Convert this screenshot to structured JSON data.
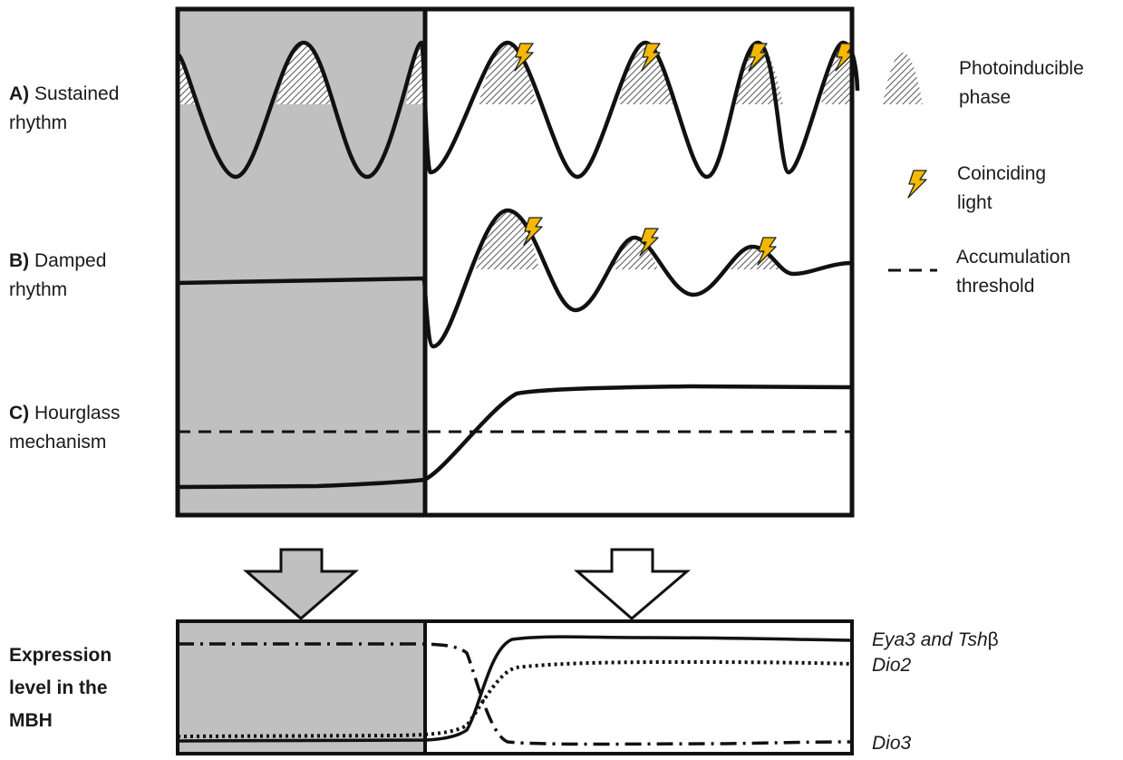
{
  "rows": {
    "a": {
      "letter": "A)",
      "line1": "Sustained",
      "line2": "rhythm"
    },
    "b": {
      "letter": "B)",
      "line1": "Damped",
      "line2": "rhythm"
    },
    "c": {
      "letter": "C)",
      "line1": "Hourglass",
      "line2": "mechanism"
    }
  },
  "legend": {
    "photoinducible": {
      "line1": "Photoinducible",
      "line2": "phase"
    },
    "light": {
      "line1": "Coinciding",
      "line2": "light"
    },
    "threshold": {
      "line1": "Accumulation",
      "line2": "threshold"
    }
  },
  "expression": {
    "line1": "Expression",
    "line2": "level in the",
    "line3": "MBH"
  },
  "genes": {
    "eya3_italic": "Eya3 and Tsh",
    "eya3_suffix": "β",
    "dio2": "Dio2",
    "dio3": "Dio3"
  },
  "colors": {
    "dark_phase": "#c0c0c0",
    "light_phase": "#ffffff",
    "lightning_fill": "#f5b800",
    "line": "#111111"
  }
}
